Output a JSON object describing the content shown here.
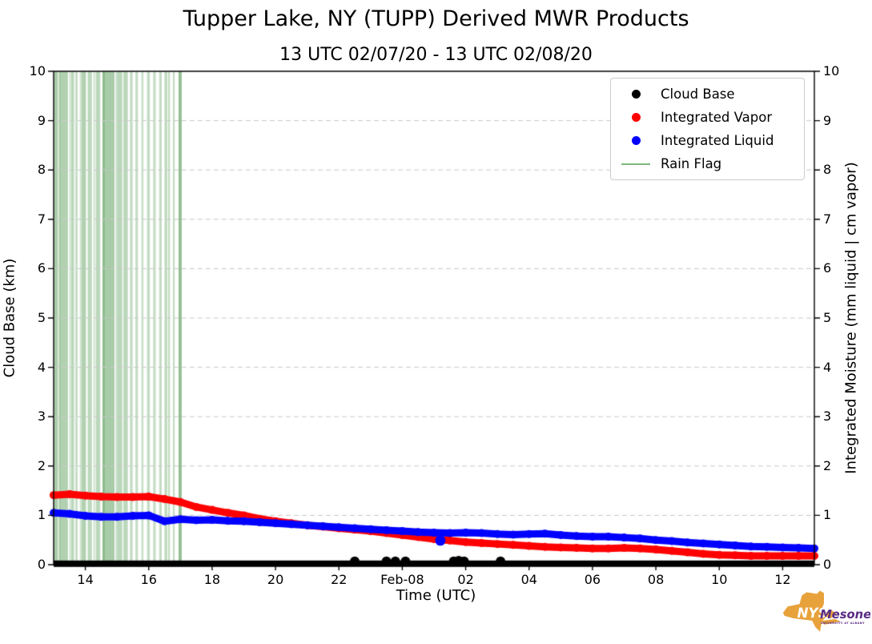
{
  "title": "Tupper Lake, NY (TUPP) Derived MWR Products",
  "subtitle": "13 UTC 02/07/20 - 13 UTC 02/08/20",
  "axes": {
    "x_label": "Time (UTC)",
    "y_left_label": "Cloud Base (km)",
    "y_right_label": "Integrated Moisture (mm liquid | cm vapor)"
  },
  "legend": {
    "items": [
      {
        "label": "Cloud Base",
        "marker": "dot",
        "color": "#000000"
      },
      {
        "label": "Integrated Vapor",
        "marker": "dot",
        "color": "#ff0000"
      },
      {
        "label": "Integrated Liquid",
        "marker": "dot",
        "color": "#0000ff"
      },
      {
        "label": "Rain Flag",
        "marker": "line",
        "color": "#7cb87c"
      }
    ]
  },
  "colors": {
    "cloud_base": "#000000",
    "vapor": "#ff0000",
    "liquid": "#0000ff",
    "rain_flag": "#3d8b3d",
    "grid": "#c9c9c9",
    "spine": "#000000"
  },
  "logo": {
    "nys": "NYS",
    "mesonet": "Mesonet",
    "tagline": "UNIVERSITY AT ALBANY",
    "state_color": "#e8a23b",
    "text_color": "#5b2c86"
  },
  "chart_data": {
    "type": "scatter",
    "title": "Tupper Lake, NY (TUPP) Derived MWR Products",
    "subtitle": "13 UTC 02/07/20 - 13 UTC 02/08/20",
    "xlabel": "Time (UTC)",
    "ylabel_left": "Cloud Base (km)",
    "ylabel_right": "Integrated Moisture (mm liquid | cm vapor)",
    "x_axis_note": "hours elapsed since 13 UTC 02/07/20",
    "xlim": [
      0,
      24
    ],
    "ylim": [
      0,
      10
    ],
    "grid": "horizontal-dashed",
    "legend_position": "upper right",
    "xticks": [
      {
        "t": 1,
        "label": "14"
      },
      {
        "t": 3,
        "label": "16"
      },
      {
        "t": 5,
        "label": "18"
      },
      {
        "t": 7,
        "label": "20"
      },
      {
        "t": 9,
        "label": "22"
      },
      {
        "t": 11,
        "label": "Feb-08"
      },
      {
        "t": 13,
        "label": "02"
      },
      {
        "t": 15,
        "label": "04"
      },
      {
        "t": 17,
        "label": "06"
      },
      {
        "t": 19,
        "label": "08"
      },
      {
        "t": 21,
        "label": "10"
      },
      {
        "t": 23,
        "label": "12"
      }
    ],
    "yticks_left": [
      "0",
      "1",
      "2",
      "3",
      "4",
      "5",
      "6",
      "7",
      "8",
      "9",
      "10"
    ],
    "yticks_right": [
      "0",
      "1",
      "2",
      "3",
      "4",
      "5",
      "6",
      "7",
      "8",
      "9",
      "10"
    ],
    "series": [
      {
        "name": "Cloud Base",
        "axis": "left",
        "units": "km",
        "style": "scatter-dense",
        "baseline": {
          "t_start": 0,
          "t_end": 24,
          "value": 0.02
        },
        "elevated_points": [
          [
            9.5,
            0.07
          ],
          [
            10.5,
            0.07
          ],
          [
            10.78,
            0.07
          ],
          [
            11.1,
            0.07
          ],
          [
            12.62,
            0.07
          ],
          [
            12.78,
            0.08
          ],
          [
            12.95,
            0.07
          ],
          [
            14.1,
            0.07
          ]
        ]
      },
      {
        "name": "Integrated Vapor",
        "axis": "right",
        "units": "cm",
        "style": "scatter-dense",
        "points": [
          [
            0,
            1.41
          ],
          [
            0.5,
            1.43
          ],
          [
            1,
            1.4
          ],
          [
            1.5,
            1.38
          ],
          [
            2,
            1.37
          ],
          [
            2.5,
            1.37
          ],
          [
            3,
            1.38
          ],
          [
            3.5,
            1.33
          ],
          [
            4,
            1.27
          ],
          [
            4.5,
            1.17
          ],
          [
            5,
            1.11
          ],
          [
            5.5,
            1.05
          ],
          [
            6,
            1.0
          ],
          [
            6.5,
            0.93
          ],
          [
            7,
            0.88
          ],
          [
            7.5,
            0.84
          ],
          [
            8,
            0.8
          ],
          [
            8.5,
            0.77
          ],
          [
            9,
            0.74
          ],
          [
            9.5,
            0.71
          ],
          [
            10,
            0.68
          ],
          [
            10.5,
            0.64
          ],
          [
            11,
            0.6
          ],
          [
            11.5,
            0.56
          ],
          [
            12,
            0.52
          ],
          [
            12.5,
            0.49
          ],
          [
            13,
            0.46
          ],
          [
            13.5,
            0.44
          ],
          [
            14,
            0.42
          ],
          [
            14.5,
            0.4
          ],
          [
            15,
            0.38
          ],
          [
            15.5,
            0.36
          ],
          [
            16,
            0.35
          ],
          [
            16.5,
            0.34
          ],
          [
            17,
            0.33
          ],
          [
            17.5,
            0.33
          ],
          [
            18,
            0.34
          ],
          [
            18.5,
            0.33
          ],
          [
            19,
            0.31
          ],
          [
            19.5,
            0.28
          ],
          [
            20,
            0.25
          ],
          [
            20.5,
            0.22
          ],
          [
            21,
            0.2
          ],
          [
            21.5,
            0.19
          ],
          [
            22,
            0.18
          ],
          [
            22.5,
            0.18
          ],
          [
            23,
            0.18
          ],
          [
            23.5,
            0.18
          ],
          [
            24,
            0.18
          ]
        ]
      },
      {
        "name": "Integrated Liquid",
        "axis": "right",
        "units": "mm",
        "style": "scatter-dense",
        "points": [
          [
            0,
            1.05
          ],
          [
            0.5,
            1.03
          ],
          [
            1,
            0.99
          ],
          [
            1.5,
            0.97
          ],
          [
            2,
            0.97
          ],
          [
            2.5,
            0.99
          ],
          [
            3,
            1.0
          ],
          [
            3.5,
            0.88
          ],
          [
            4,
            0.92
          ],
          [
            4.5,
            0.9
          ],
          [
            5,
            0.91
          ],
          [
            5.5,
            0.89
          ],
          [
            6,
            0.88
          ],
          [
            6.5,
            0.86
          ],
          [
            7,
            0.84
          ],
          [
            7.5,
            0.82
          ],
          [
            8,
            0.8
          ],
          [
            8.5,
            0.78
          ],
          [
            9,
            0.76
          ],
          [
            9.5,
            0.74
          ],
          [
            10,
            0.72
          ],
          [
            10.5,
            0.7
          ],
          [
            11,
            0.68
          ],
          [
            11.5,
            0.66
          ],
          [
            12,
            0.65
          ],
          [
            12.5,
            0.64
          ],
          [
            13,
            0.65
          ],
          [
            13.5,
            0.64
          ],
          [
            14,
            0.62
          ],
          [
            14.5,
            0.61
          ],
          [
            15,
            0.62
          ],
          [
            15.5,
            0.63
          ],
          [
            16,
            0.6
          ],
          [
            16.5,
            0.58
          ],
          [
            17,
            0.57
          ],
          [
            17.5,
            0.57
          ],
          [
            18,
            0.55
          ],
          [
            18.5,
            0.53
          ],
          [
            19,
            0.5
          ],
          [
            19.5,
            0.48
          ],
          [
            20,
            0.45
          ],
          [
            20.5,
            0.43
          ],
          [
            21,
            0.41
          ],
          [
            21.5,
            0.39
          ],
          [
            22,
            0.37
          ],
          [
            22.5,
            0.36
          ],
          [
            23,
            0.35
          ],
          [
            23.5,
            0.34
          ],
          [
            24,
            0.33
          ]
        ],
        "outlier_points": [
          [
            12.2,
            0.49
          ]
        ]
      },
      {
        "name": "Rain Flag",
        "style": "vspan",
        "spans": [
          {
            "t": 0.07,
            "w": 0.12,
            "a": 0.45
          },
          {
            "t": 0.18,
            "w": 0.06,
            "a": 0.3
          },
          {
            "t": 0.32,
            "w": 0.26,
            "a": 0.4
          },
          {
            "t": 0.52,
            "w": 0.05,
            "a": 0.25
          },
          {
            "t": 0.6,
            "w": 0.09,
            "a": 0.35
          },
          {
            "t": 0.72,
            "w": 0.07,
            "a": 0.3
          },
          {
            "t": 0.85,
            "w": 0.05,
            "a": 0.25
          },
          {
            "t": 0.95,
            "w": 0.14,
            "a": 0.4
          },
          {
            "t": 1.14,
            "w": 0.13,
            "a": 0.35
          },
          {
            "t": 1.28,
            "w": 0.05,
            "a": 0.25
          },
          {
            "t": 1.4,
            "w": 0.14,
            "a": 0.35
          },
          {
            "t": 1.58,
            "w": 0.06,
            "a": 0.3
          },
          {
            "t": 1.73,
            "w": 0.38,
            "a": 0.45
          },
          {
            "t": 2.0,
            "w": 0.08,
            "a": 0.3
          },
          {
            "t": 2.1,
            "w": 0.13,
            "a": 0.35
          },
          {
            "t": 2.27,
            "w": 0.14,
            "a": 0.35
          },
          {
            "t": 2.45,
            "w": 0.09,
            "a": 0.3
          },
          {
            "t": 2.62,
            "w": 0.08,
            "a": 0.3
          },
          {
            "t": 2.8,
            "w": 0.06,
            "a": 0.3
          },
          {
            "t": 2.99,
            "w": 0.09,
            "a": 0.3
          },
          {
            "t": 3.18,
            "w": 0.08,
            "a": 0.3
          },
          {
            "t": 3.37,
            "w": 0.08,
            "a": 0.3
          },
          {
            "t": 3.54,
            "w": 0.08,
            "a": 0.35
          },
          {
            "t": 3.64,
            "w": 0.06,
            "a": 0.3
          },
          {
            "t": 3.79,
            "w": 0.06,
            "a": 0.3
          },
          {
            "t": 3.99,
            "w": 0.1,
            "a": 0.55
          }
        ]
      }
    ]
  }
}
